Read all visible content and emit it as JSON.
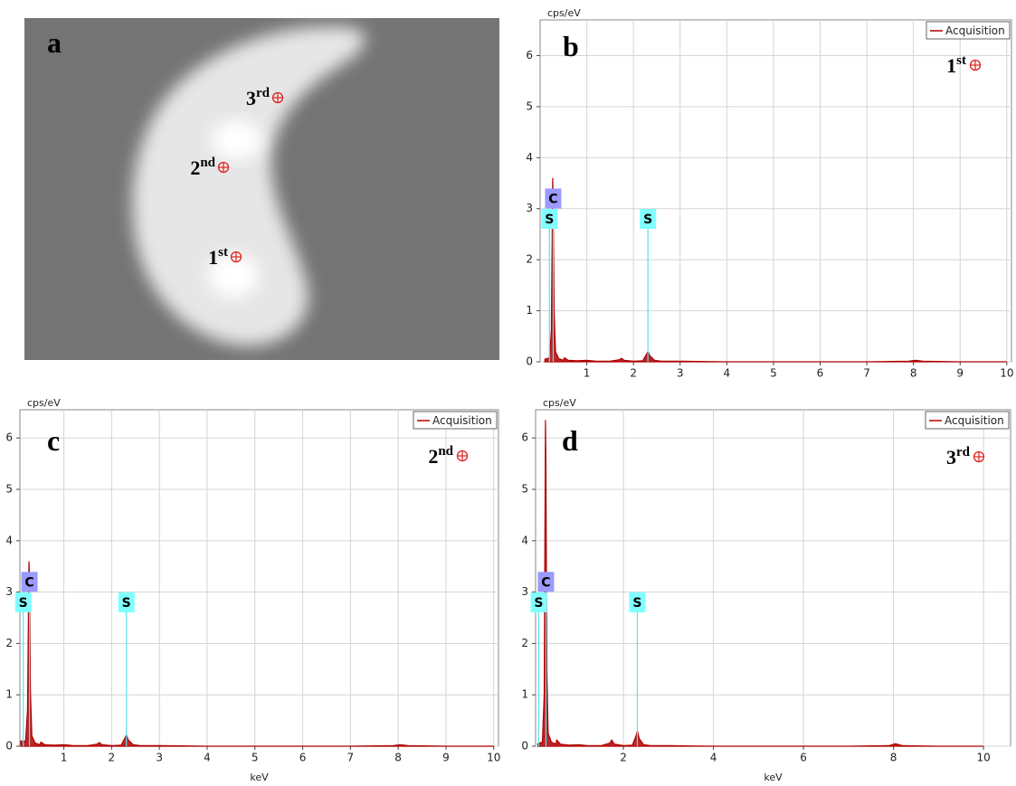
{
  "image_panel": {
    "label": "a",
    "points": [
      {
        "base": "3",
        "sup": "rd"
      },
      {
        "base": "2",
        "sup": "nd"
      },
      {
        "base": "1",
        "sup": "st"
      }
    ]
  },
  "chart_data": [
    {
      "type": "line",
      "panel_label": "b",
      "point_label": {
        "base": "1",
        "sup": "st"
      },
      "y_label": "cps/eV",
      "xlim": [
        0,
        10.1
      ],
      "xticks": [
        1,
        2,
        3,
        4,
        5,
        6,
        7,
        8,
        9,
        10
      ],
      "ylim": [
        0,
        6.7
      ],
      "yticks": [
        0,
        1,
        2,
        3,
        4,
        5,
        6
      ],
      "grid": true,
      "legend": "upper right",
      "x": [
        0.1,
        0.2,
        0.24,
        0.27,
        0.28,
        0.3,
        0.33,
        0.4,
        0.5,
        0.52,
        0.6,
        0.8,
        1.0,
        1.2,
        1.5,
        1.7,
        1.74,
        1.8,
        2.0,
        2.2,
        2.28,
        2.31,
        2.35,
        2.45,
        2.6,
        3.0,
        4.0,
        5.0,
        6.0,
        7.0,
        7.9,
        8.04,
        8.2,
        9.0,
        10.0
      ],
      "series": [
        {
          "name": "Acquisition",
          "color": "#b00000",
          "values": [
            0.05,
            0.08,
            0.6,
            3.6,
            3.2,
            1.0,
            0.2,
            0.06,
            0.03,
            0.08,
            0.03,
            0.02,
            0.03,
            0.01,
            0.01,
            0.04,
            0.07,
            0.03,
            0.01,
            0.02,
            0.15,
            0.2,
            0.12,
            0.03,
            0.01,
            0.01,
            0,
            0,
            0,
            0,
            0.01,
            0.03,
            0.01,
            0,
            0
          ]
        }
      ],
      "annotations": [
        {
          "label": "C",
          "x": 0.28,
          "y": 3.2,
          "color": "#9a9aff"
        },
        {
          "label": "S",
          "x": 0.2,
          "y": 2.8,
          "color": "#80ffff"
        },
        {
          "label": "S",
          "x": 2.31,
          "y": 2.8,
          "color": "#80ffff"
        }
      ]
    },
    {
      "type": "line",
      "panel_label": "c",
      "point_label": {
        "base": "2",
        "sup": "nd"
      },
      "y_label": "cps/eV",
      "x_label": "keV",
      "xlim": [
        0.08,
        10.1
      ],
      "xticks": [
        1,
        2,
        3,
        4,
        5,
        6,
        7,
        8,
        9,
        10
      ],
      "ylim": [
        0,
        6.55
      ],
      "yticks": [
        0,
        1,
        2,
        3,
        4,
        5,
        6
      ],
      "grid": true,
      "legend": "upper right",
      "x": [
        0.1,
        0.2,
        0.24,
        0.27,
        0.28,
        0.3,
        0.33,
        0.4,
        0.5,
        0.52,
        0.6,
        0.8,
        1.0,
        1.2,
        1.5,
        1.7,
        1.74,
        1.8,
        2.0,
        2.2,
        2.28,
        2.31,
        2.35,
        2.45,
        2.6,
        3.0,
        4.0,
        5.0,
        6.0,
        7.0,
        7.9,
        8.04,
        8.2,
        9.0,
        10.0
      ],
      "series": [
        {
          "name": "Acquisition",
          "color": "#b00000",
          "values": [
            0.1,
            0.1,
            0.7,
            3.6,
            3.3,
            1.1,
            0.2,
            0.06,
            0.03,
            0.08,
            0.03,
            0.02,
            0.03,
            0.01,
            0.01,
            0.04,
            0.07,
            0.03,
            0.01,
            0.02,
            0.16,
            0.22,
            0.12,
            0.03,
            0.01,
            0.01,
            0,
            0,
            0,
            0,
            0.01,
            0.03,
            0.01,
            0,
            0
          ]
        }
      ],
      "annotations": [
        {
          "label": "C",
          "x": 0.28,
          "y": 3.2,
          "color": "#9a9aff"
        },
        {
          "label": "S",
          "x": 0.15,
          "y": 2.8,
          "color": "#80ffff"
        },
        {
          "label": "S",
          "x": 2.31,
          "y": 2.8,
          "color": "#80ffff"
        }
      ]
    },
    {
      "type": "line",
      "panel_label": "d",
      "point_label": {
        "base": "3",
        "sup": "rd"
      },
      "y_label": "cps/eV",
      "x_label": "keV",
      "xlim": [
        0.05,
        10.6
      ],
      "xticks": [
        2,
        4,
        6,
        8,
        10
      ],
      "ylim": [
        0,
        6.55
      ],
      "yticks": [
        0,
        1,
        2,
        3,
        4,
        5,
        6
      ],
      "grid": true,
      "legend": "upper right",
      "x": [
        0.1,
        0.2,
        0.24,
        0.27,
        0.28,
        0.3,
        0.33,
        0.4,
        0.5,
        0.52,
        0.6,
        0.8,
        1.0,
        1.2,
        1.5,
        1.7,
        1.74,
        1.8,
        2.0,
        2.2,
        2.28,
        2.31,
        2.35,
        2.45,
        2.6,
        3.0,
        4.0,
        5.0,
        6.0,
        7.0,
        7.9,
        8.04,
        8.2,
        9.0,
        10.0
      ],
      "series": [
        {
          "name": "Acquisition",
          "color": "#b00000",
          "values": [
            0.05,
            0.08,
            1.0,
            6.35,
            5.6,
            1.5,
            0.25,
            0.08,
            0.04,
            0.12,
            0.04,
            0.02,
            0.03,
            0.01,
            0.01,
            0.06,
            0.12,
            0.04,
            0.01,
            0.02,
            0.2,
            0.3,
            0.15,
            0.03,
            0.01,
            0.01,
            0,
            0,
            0,
            0,
            0.01,
            0.05,
            0.01,
            0,
            0
          ]
        }
      ],
      "annotations": [
        {
          "label": "C",
          "x": 0.28,
          "y": 3.2,
          "color": "#9a9aff"
        },
        {
          "label": "S",
          "x": 0.12,
          "y": 2.8,
          "color": "#80ffff"
        },
        {
          "label": "S",
          "x": 2.31,
          "y": 2.8,
          "color": "#80ffff"
        }
      ]
    }
  ]
}
